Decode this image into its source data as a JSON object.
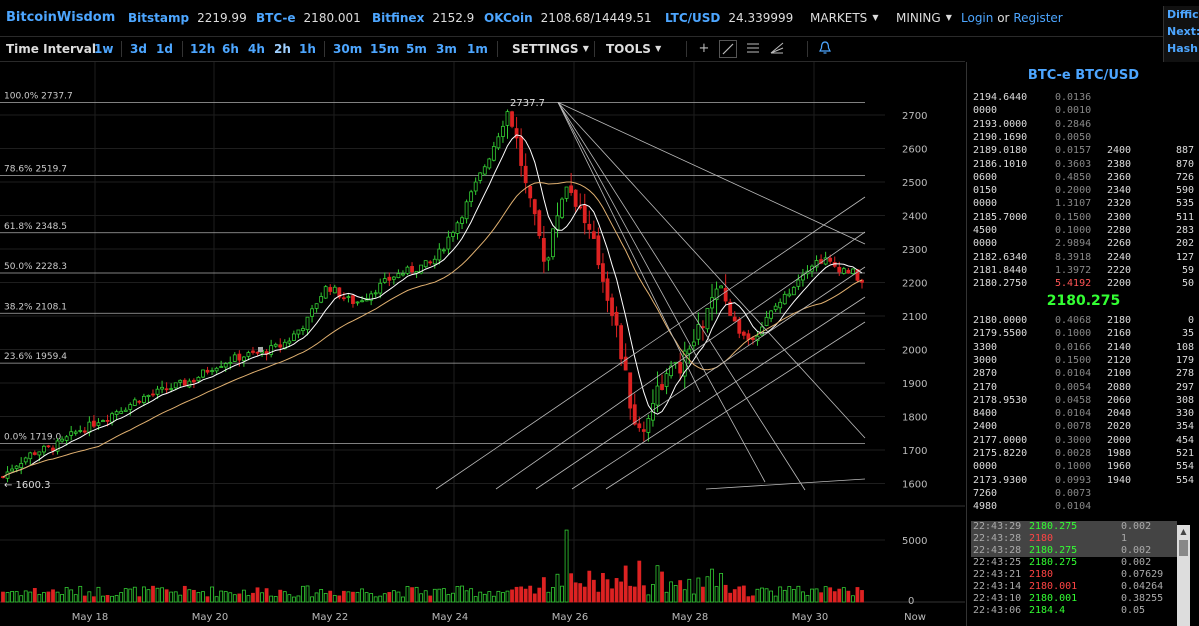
{
  "header": {
    "brand": "BitcoinWisdom",
    "markets": [
      {
        "name": "Bitstamp",
        "value": "2219.99"
      },
      {
        "name": "BTC-e",
        "value": "2180.001"
      },
      {
        "name": "Bitfinex",
        "value": "2152.9"
      },
      {
        "name": "OKCoin",
        "value": "2108.68/14449.51"
      },
      {
        "name": "LTC/USD",
        "value": "24.339999"
      }
    ],
    "menus": [
      "MARKETS",
      "MINING"
    ],
    "login": "Login",
    "or": "or",
    "register": "Register",
    "difficulty": [
      "Difficu",
      "Next:",
      "Hash"
    ]
  },
  "toolbar": {
    "interval_label": "Time Interval:",
    "intervals": [
      "1w",
      "3d",
      "1d",
      "12h",
      "6h",
      "4h",
      "2h",
      "1h",
      "30m",
      "15m",
      "5m",
      "3m",
      "1m"
    ],
    "active_interval": "2h",
    "settings": "SETTINGS",
    "tools": "TOOLS",
    "icons": [
      "crosshair-icon",
      "line-tool-icon",
      "horizontal-lines-icon",
      "fan-tool-icon",
      "alert-bell-icon"
    ]
  },
  "chart": {
    "fib_levels": [
      {
        "label": "100.0% 2737.7",
        "value": 2737.7
      },
      {
        "label": "78.6% 2519.7",
        "value": 2519.7
      },
      {
        "label": "61.8% 2348.5",
        "value": 2348.5
      },
      {
        "label": "50.0% 2228.3",
        "value": 2228.3
      },
      {
        "label": "38.2% 2108.1",
        "value": 2108.1
      },
      {
        "label": "23.6% 1959.4",
        "value": 1959.4
      },
      {
        "label": "0.0% 1719.0",
        "value": 1719.0
      }
    ],
    "peak_label": "2737.7",
    "low_label": "← 1600.3",
    "price_ticks": [
      "2700",
      "2600",
      "2500",
      "2400",
      "2300",
      "2200",
      "2100",
      "2000",
      "1900",
      "1800",
      "1700",
      "1600"
    ],
    "volume_ticks": [
      "5000",
      "0"
    ],
    "date_ticks": [
      "May 18",
      "May 20",
      "May 22",
      "May 24",
      "May 26",
      "May 28",
      "May 30",
      "Now"
    ],
    "colors": {
      "up": "#33cc33",
      "down": "#dd2222",
      "grid": "#1e1e1e",
      "ma_short": "#ffffff",
      "ma_long": "#e0b070"
    }
  },
  "chart_data": {
    "type": "candlestick",
    "y_range": [
      1600,
      2750
    ],
    "close_path": [
      1620,
      1650,
      1670,
      1690,
      1700,
      1705,
      1720,
      1740,
      1760,
      1770,
      1790,
      1800,
      1820,
      1830,
      1850,
      1860,
      1870,
      1880,
      1890,
      1900,
      1910,
      1930,
      1950,
      1960,
      1970,
      1980,
      1985,
      1990,
      2000,
      2010,
      2030,
      2060,
      2090,
      2150,
      2190,
      2170,
      2150,
      2140,
      2160,
      2180,
      2200,
      2220,
      2230,
      2240,
      2250,
      2260,
      2300,
      2350,
      2400,
      2460,
      2520,
      2580,
      2650,
      2720,
      2600,
      2450,
      2350,
      2250,
      2400,
      2500,
      2450,
      2380,
      2300,
      2200,
      2100,
      1950,
      1800,
      1740,
      1850,
      1900,
      1930,
      1950,
      2000,
      2060,
      2120,
      2180,
      2120,
      2060,
      2030,
      2050,
      2090,
      2130,
      2160,
      2200,
      2240,
      2260,
      2270,
      2250,
      2240,
      2230,
      2200
    ],
    "volume_ticks": [
      0,
      5000
    ]
  },
  "orderbook": {
    "title": "BTC-e BTC/USD",
    "asks": [
      [
        "2194.6440",
        "0.0136",
        "",
        ""
      ],
      [
        "0000",
        "0.0010",
        "",
        ""
      ],
      [
        "2193.0000",
        "0.2846",
        "",
        ""
      ],
      [
        "2190.1690",
        "0.0050",
        "",
        ""
      ],
      [
        "2189.0180",
        "0.0157",
        "2400",
        "887"
      ],
      [
        "2186.1010",
        "0.3603",
        "2380",
        "870"
      ],
      [
        "0600",
        "0.4850",
        "2360",
        "726"
      ],
      [
        "0150",
        "0.2000",
        "2340",
        "590"
      ],
      [
        "0000",
        "1.3107",
        "2320",
        "535"
      ],
      [
        "2185.7000",
        "0.1500",
        "2300",
        "511"
      ],
      [
        "4500",
        "0.1000",
        "2280",
        "283"
      ],
      [
        "0000",
        "2.9894",
        "2260",
        "202"
      ],
      [
        "2182.6340",
        "8.3918",
        "2240",
        "127"
      ],
      [
        "2181.8440",
        "1.3972",
        "2220",
        "59"
      ],
      [
        "2180.2750",
        "5.4192",
        "2200",
        "50"
      ]
    ],
    "last": "2180.275",
    "bids": [
      [
        "2180.0000",
        "0.4068",
        "2180",
        "0"
      ],
      [
        "2179.5500",
        "0.1000",
        "2160",
        "35"
      ],
      [
        "3300",
        "0.0166",
        "2140",
        "108"
      ],
      [
        "3000",
        "0.1500",
        "2120",
        "179"
      ],
      [
        "2870",
        "0.0104",
        "2100",
        "278"
      ],
      [
        "2170",
        "0.0054",
        "2080",
        "297"
      ],
      [
        "2178.9530",
        "0.0458",
        "2060",
        "308"
      ],
      [
        "8400",
        "0.0104",
        "2040",
        "330"
      ],
      [
        "2400",
        "0.0078",
        "2020",
        "354"
      ],
      [
        "2177.0000",
        "0.3000",
        "2000",
        "454"
      ],
      [
        "2175.8220",
        "0.0028",
        "1980",
        "521"
      ],
      [
        "0000",
        "0.1000",
        "1960",
        "554"
      ],
      [
        "2173.9300",
        "0.0993",
        "1940",
        "554"
      ],
      [
        "7260",
        "0.0073",
        "",
        ""
      ],
      [
        "4980",
        "0.0104",
        "",
        ""
      ]
    ]
  },
  "trades": [
    {
      "time": "22:43:29",
      "price": "2180.275",
      "amount": "0.002",
      "side": "buy",
      "hl": true
    },
    {
      "time": "22:43:28",
      "price": "2180",
      "amount": "1",
      "side": "sell",
      "hl": true
    },
    {
      "time": "22:43:28",
      "price": "2180.275",
      "amount": "0.002",
      "side": "buy",
      "hl": true
    },
    {
      "time": "22:43:25",
      "price": "2180.275",
      "amount": "0.002",
      "side": "buy",
      "hl": false
    },
    {
      "time": "22:43:21",
      "price": "2180",
      "amount": "0.07629",
      "side": "sell",
      "hl": false
    },
    {
      "time": "22:43:14",
      "price": "2180.001",
      "amount": "0.04264",
      "side": "sell",
      "hl": false
    },
    {
      "time": "22:43:10",
      "price": "2180.001",
      "amount": "0.38255",
      "side": "buy",
      "hl": false
    },
    {
      "time": "22:43:06",
      "price": "2184.4",
      "amount": "0.05",
      "side": "buy",
      "hl": false
    }
  ]
}
